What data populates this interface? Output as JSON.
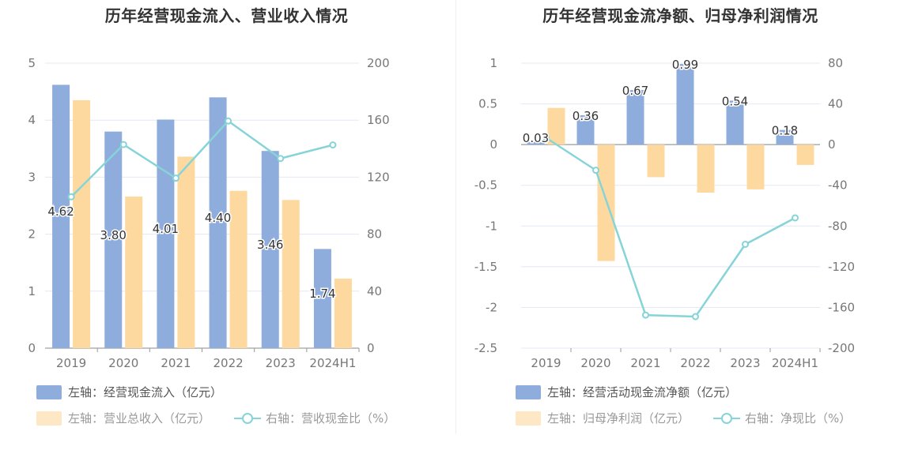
{
  "colors": {
    "blue": "#8eacdc",
    "orange": "#fdd99f",
    "teal": "#86d4d8",
    "grid": "#e4e8f3",
    "axis_text": "#777777",
    "label_text": "#333333"
  },
  "chart_data": [
    {
      "type": "bar",
      "title": "历年经营现金流入、营业收入情况",
      "categories": [
        "2019",
        "2020",
        "2021",
        "2022",
        "2023",
        "2024H1"
      ],
      "y_left_ticks": [
        "0",
        "1",
        "2",
        "3",
        "4",
        "5"
      ],
      "y_right_ticks": [
        "0",
        "40",
        "80",
        "120",
        "160",
        "200"
      ],
      "ylim_left": [
        0,
        5
      ],
      "ylim_right": [
        0,
        200
      ],
      "series": [
        {
          "name": "左轴：经营现金流入（亿元）",
          "axis": "left",
          "kind": "bar",
          "color": "#8eacdc",
          "values": [
            4.62,
            3.8,
            4.01,
            4.4,
            3.46,
            1.74
          ],
          "labels": [
            "4.62",
            "3.80",
            "4.01",
            "4.40",
            "3.46",
            "1.74"
          ]
        },
        {
          "name": "左轴：营业总收入（亿元）",
          "axis": "left",
          "kind": "bar",
          "color": "#fdd99f",
          "values": [
            4.35,
            2.66,
            3.36,
            2.76,
            2.6,
            1.22
          ]
        },
        {
          "name": "右轴：营收现金比（%）",
          "axis": "right",
          "kind": "line",
          "color": "#86d4d8",
          "values": [
            106.2,
            142.9,
            119.3,
            159.4,
            133.1,
            142.6
          ]
        }
      ]
    },
    {
      "type": "bar",
      "title": "历年经营现金流净额、归母净利润情况",
      "categories": [
        "2019",
        "2020",
        "2021",
        "2022",
        "2023",
        "2024H1"
      ],
      "y_left_ticks": [
        "1",
        "0.5",
        "0",
        "-0.5",
        "-1",
        "-1.5",
        "-2",
        "-2.5"
      ],
      "y_right_ticks": [
        "80",
        "40",
        "0",
        "-40",
        "-80",
        "-120",
        "-160",
        "-200"
      ],
      "ylim_left": [
        -2.5,
        1
      ],
      "ylim_right": [
        -200,
        80
      ],
      "series": [
        {
          "name": "左轴：经营活动现金流净额（亿元）",
          "axis": "left",
          "kind": "bar",
          "color": "#8eacdc",
          "values": [
            0.03,
            0.36,
            0.67,
            0.99,
            0.54,
            0.18
          ],
          "labels": [
            "0.03",
            "0.36",
            "0.67",
            "0.99",
            "0.54",
            "0.18"
          ]
        },
        {
          "name": "左轴：归母净利润（亿元）",
          "axis": "left",
          "kind": "bar",
          "color": "#fdd99f",
          "values": [
            0.45,
            -1.43,
            -0.4,
            -0.59,
            -0.55,
            -0.25
          ]
        },
        {
          "name": "右轴：净现比（%）",
          "axis": "right",
          "kind": "line",
          "color": "#86d4d8",
          "values": [
            6.7,
            -25.2,
            -167.5,
            -169.0,
            -98.0,
            -72.0
          ]
        }
      ]
    }
  ]
}
